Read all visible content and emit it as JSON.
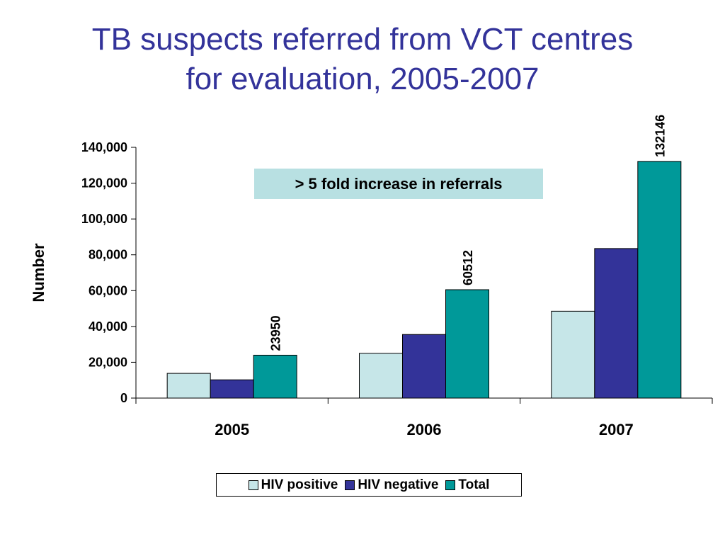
{
  "chart_data": {
    "type": "bar",
    "title_line1": "TB suspects referred from VCT centres",
    "title_line2": "for evaluation, 2005-2007",
    "ylabel": "Number",
    "xlabel": "",
    "ylim": [
      0,
      140000
    ],
    "yticks": [
      0,
      20000,
      40000,
      60000,
      80000,
      100000,
      120000,
      140000
    ],
    "ytick_labels": [
      "0",
      "20,000",
      "40,000",
      "60,000",
      "80,000",
      "100,000",
      "120,000",
      "140,000"
    ],
    "categories": [
      "2005",
      "2006",
      "2007"
    ],
    "series": [
      {
        "name": "HIV positive",
        "color": "#c6e6e8",
        "values": [
          13800,
          25000,
          48500
        ]
      },
      {
        "name": "HIV negative",
        "color": "#333399",
        "values": [
          10200,
          35500,
          83500
        ]
      },
      {
        "name": "Total",
        "color": "#009999",
        "values": [
          23950,
          60512,
          132146
        ],
        "labels": [
          "23950",
          "60512",
          "132146"
        ]
      }
    ],
    "annotation": "> 5 fold increase in referrals",
    "legend_position": "bottom",
    "grid": false
  }
}
